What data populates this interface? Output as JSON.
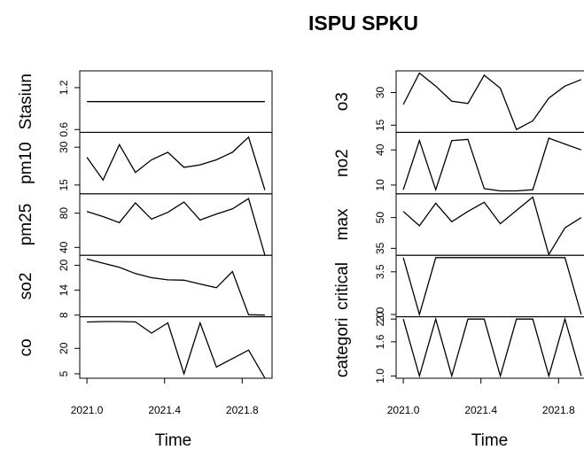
{
  "chart_data": {
    "type": "line",
    "title": "ISPU SPKU",
    "xlabel": "Time",
    "x": [
      2021,
      2021.083,
      2021.167,
      2021.25,
      2021.333,
      2021.417,
      2021.5,
      2021.583,
      2021.667,
      2021.75,
      2021.833,
      2021.917
    ],
    "xlim": [
      2020.963,
      2021.954
    ],
    "xticks": [
      {
        "value": 2021,
        "label": "2021.0"
      },
      2021.4,
      2021.8
    ],
    "color": "#000000",
    "panels": [
      [
        {
          "name": "Stasiun",
          "values": [
            1,
            1,
            1,
            1,
            1,
            1,
            1,
            1,
            1,
            1,
            1,
            1
          ],
          "ylim": [
            0.56,
            1.44
          ],
          "yticks": [
            0.6,
            1.2
          ]
        },
        {
          "name": "pm10",
          "values": [
            26,
            17,
            31,
            20,
            25,
            28,
            22,
            23,
            25,
            28,
            34,
            13
          ],
          "ylim": [
            11.5,
            35.9
          ],
          "yticks": [
            15,
            30
          ]
        },
        {
          "name": "pm25",
          "values": [
            82,
            76,
            69,
            92,
            73,
            81,
            93,
            72,
            79,
            85,
            97,
            31
          ],
          "ylim": [
            30.8,
            102.6
          ],
          "yticks": [
            40,
            80
          ]
        },
        {
          "name": "so2",
          "values": [
            21.5,
            20.5,
            19.5,
            18,
            17,
            16.5,
            16.4,
            15.5,
            14.6,
            18.5,
            8.1,
            8
          ],
          "ylim": [
            7.6,
            22.4
          ],
          "yticks": [
            8,
            14,
            20
          ]
        },
        {
          "name": "co",
          "values": [
            35.5,
            35.8,
            35.8,
            35.6,
            29,
            35,
            5,
            35,
            9,
            14,
            19,
            2.5
          ],
          "ylim": [
            2.4,
            38.6
          ],
          "yticks": [
            5,
            20
          ]
        }
      ],
      [
        {
          "name": "o3",
          "values": [
            24.5,
            39,
            33,
            26,
            25,
            38,
            32,
            13,
            17,
            27.5,
            33,
            36
          ],
          "ylim": [
            11.7,
            40
          ],
          "yticks": [
            15,
            30
          ]
        },
        {
          "name": "no2",
          "values": [
            6,
            48,
            6,
            48,
            49,
            7,
            5,
            5,
            6,
            50,
            45,
            40
          ],
          "ylim": [
            2.5,
            55
          ],
          "yticks": [
            10,
            40
          ]
        },
        {
          "name": "max",
          "values": [
            53,
            46,
            57,
            48,
            53,
            57.5,
            47,
            53.5,
            60,
            32,
            45,
            50
          ],
          "ylim": [
            31.6,
            61.6
          ],
          "yticks": [
            35,
            50
          ]
        },
        {
          "name": "critical",
          "values": [
            4,
            2,
            4,
            4,
            4,
            4,
            4,
            4,
            4,
            4,
            4,
            2
          ],
          "ylim": [
            1.92,
            4.08
          ],
          "yticks": [
            {
              "value": 2,
              "label": "2.0"
            },
            3.5
          ]
        },
        {
          "name": "categori",
          "values": [
            2,
            1,
            2,
            1,
            2,
            2,
            1,
            2,
            2,
            1,
            2,
            1
          ],
          "ylim": [
            0.96,
            2.04
          ],
          "yticks": [
            {
              "value": 1,
              "label": "1.0"
            },
            1.6,
            {
              "value": 2,
              "label": "2.0"
            }
          ]
        }
      ]
    ]
  }
}
